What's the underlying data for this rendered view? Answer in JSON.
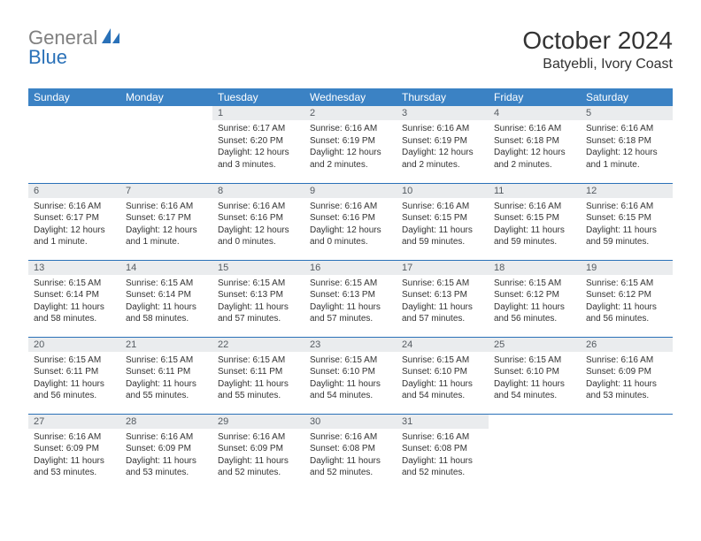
{
  "logo": {
    "general": "General",
    "blue": "Blue"
  },
  "title": "October 2024",
  "location": "Batyebli, Ivory Coast",
  "colors": {
    "header_bg": "#3b82c4",
    "header_text": "#ffffff",
    "border": "#2a71b8",
    "daynum_bg": "#eaecee",
    "daynum_text": "#555b61",
    "body_text": "#333333",
    "logo_gray": "#808080",
    "logo_blue": "#2a71b8",
    "page_bg": "#ffffff"
  },
  "day_headers": [
    "Sunday",
    "Monday",
    "Tuesday",
    "Wednesday",
    "Thursday",
    "Friday",
    "Saturday"
  ],
  "weeks": [
    [
      {
        "n": "",
        "sr": "",
        "ss": "",
        "dl": ""
      },
      {
        "n": "",
        "sr": "",
        "ss": "",
        "dl": ""
      },
      {
        "n": "1",
        "sr": "Sunrise: 6:17 AM",
        "ss": "Sunset: 6:20 PM",
        "dl": "Daylight: 12 hours and 3 minutes."
      },
      {
        "n": "2",
        "sr": "Sunrise: 6:16 AM",
        "ss": "Sunset: 6:19 PM",
        "dl": "Daylight: 12 hours and 2 minutes."
      },
      {
        "n": "3",
        "sr": "Sunrise: 6:16 AM",
        "ss": "Sunset: 6:19 PM",
        "dl": "Daylight: 12 hours and 2 minutes."
      },
      {
        "n": "4",
        "sr": "Sunrise: 6:16 AM",
        "ss": "Sunset: 6:18 PM",
        "dl": "Daylight: 12 hours and 2 minutes."
      },
      {
        "n": "5",
        "sr": "Sunrise: 6:16 AM",
        "ss": "Sunset: 6:18 PM",
        "dl": "Daylight: 12 hours and 1 minute."
      }
    ],
    [
      {
        "n": "6",
        "sr": "Sunrise: 6:16 AM",
        "ss": "Sunset: 6:17 PM",
        "dl": "Daylight: 12 hours and 1 minute."
      },
      {
        "n": "7",
        "sr": "Sunrise: 6:16 AM",
        "ss": "Sunset: 6:17 PM",
        "dl": "Daylight: 12 hours and 1 minute."
      },
      {
        "n": "8",
        "sr": "Sunrise: 6:16 AM",
        "ss": "Sunset: 6:16 PM",
        "dl": "Daylight: 12 hours and 0 minutes."
      },
      {
        "n": "9",
        "sr": "Sunrise: 6:16 AM",
        "ss": "Sunset: 6:16 PM",
        "dl": "Daylight: 12 hours and 0 minutes."
      },
      {
        "n": "10",
        "sr": "Sunrise: 6:16 AM",
        "ss": "Sunset: 6:15 PM",
        "dl": "Daylight: 11 hours and 59 minutes."
      },
      {
        "n": "11",
        "sr": "Sunrise: 6:16 AM",
        "ss": "Sunset: 6:15 PM",
        "dl": "Daylight: 11 hours and 59 minutes."
      },
      {
        "n": "12",
        "sr": "Sunrise: 6:16 AM",
        "ss": "Sunset: 6:15 PM",
        "dl": "Daylight: 11 hours and 59 minutes."
      }
    ],
    [
      {
        "n": "13",
        "sr": "Sunrise: 6:15 AM",
        "ss": "Sunset: 6:14 PM",
        "dl": "Daylight: 11 hours and 58 minutes."
      },
      {
        "n": "14",
        "sr": "Sunrise: 6:15 AM",
        "ss": "Sunset: 6:14 PM",
        "dl": "Daylight: 11 hours and 58 minutes."
      },
      {
        "n": "15",
        "sr": "Sunrise: 6:15 AM",
        "ss": "Sunset: 6:13 PM",
        "dl": "Daylight: 11 hours and 57 minutes."
      },
      {
        "n": "16",
        "sr": "Sunrise: 6:15 AM",
        "ss": "Sunset: 6:13 PM",
        "dl": "Daylight: 11 hours and 57 minutes."
      },
      {
        "n": "17",
        "sr": "Sunrise: 6:15 AM",
        "ss": "Sunset: 6:13 PM",
        "dl": "Daylight: 11 hours and 57 minutes."
      },
      {
        "n": "18",
        "sr": "Sunrise: 6:15 AM",
        "ss": "Sunset: 6:12 PM",
        "dl": "Daylight: 11 hours and 56 minutes."
      },
      {
        "n": "19",
        "sr": "Sunrise: 6:15 AM",
        "ss": "Sunset: 6:12 PM",
        "dl": "Daylight: 11 hours and 56 minutes."
      }
    ],
    [
      {
        "n": "20",
        "sr": "Sunrise: 6:15 AM",
        "ss": "Sunset: 6:11 PM",
        "dl": "Daylight: 11 hours and 56 minutes."
      },
      {
        "n": "21",
        "sr": "Sunrise: 6:15 AM",
        "ss": "Sunset: 6:11 PM",
        "dl": "Daylight: 11 hours and 55 minutes."
      },
      {
        "n": "22",
        "sr": "Sunrise: 6:15 AM",
        "ss": "Sunset: 6:11 PM",
        "dl": "Daylight: 11 hours and 55 minutes."
      },
      {
        "n": "23",
        "sr": "Sunrise: 6:15 AM",
        "ss": "Sunset: 6:10 PM",
        "dl": "Daylight: 11 hours and 54 minutes."
      },
      {
        "n": "24",
        "sr": "Sunrise: 6:15 AM",
        "ss": "Sunset: 6:10 PM",
        "dl": "Daylight: 11 hours and 54 minutes."
      },
      {
        "n": "25",
        "sr": "Sunrise: 6:15 AM",
        "ss": "Sunset: 6:10 PM",
        "dl": "Daylight: 11 hours and 54 minutes."
      },
      {
        "n": "26",
        "sr": "Sunrise: 6:16 AM",
        "ss": "Sunset: 6:09 PM",
        "dl": "Daylight: 11 hours and 53 minutes."
      }
    ],
    [
      {
        "n": "27",
        "sr": "Sunrise: 6:16 AM",
        "ss": "Sunset: 6:09 PM",
        "dl": "Daylight: 11 hours and 53 minutes."
      },
      {
        "n": "28",
        "sr": "Sunrise: 6:16 AM",
        "ss": "Sunset: 6:09 PM",
        "dl": "Daylight: 11 hours and 53 minutes."
      },
      {
        "n": "29",
        "sr": "Sunrise: 6:16 AM",
        "ss": "Sunset: 6:09 PM",
        "dl": "Daylight: 11 hours and 52 minutes."
      },
      {
        "n": "30",
        "sr": "Sunrise: 6:16 AM",
        "ss": "Sunset: 6:08 PM",
        "dl": "Daylight: 11 hours and 52 minutes."
      },
      {
        "n": "31",
        "sr": "Sunrise: 6:16 AM",
        "ss": "Sunset: 6:08 PM",
        "dl": "Daylight: 11 hours and 52 minutes."
      },
      {
        "n": "",
        "sr": "",
        "ss": "",
        "dl": ""
      },
      {
        "n": "",
        "sr": "",
        "ss": "",
        "dl": ""
      }
    ]
  ]
}
